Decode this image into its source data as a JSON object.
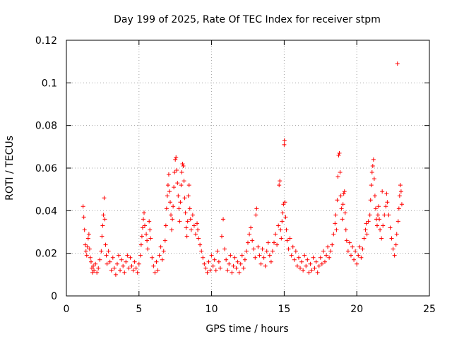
{
  "chart_data": {
    "type": "scatter",
    "title": "Day 199 of 2025, Rate Of TEC Index for receiver stpm",
    "xlabel": "GPS time / hours",
    "ylabel": "ROTI / TECUs",
    "xlim": [
      0,
      25
    ],
    "ylim": [
      0,
      0.12
    ],
    "x_ticks": [
      0,
      5,
      10,
      15,
      20,
      25
    ],
    "x_tick_labels": [
      "0",
      "5",
      "10",
      "15",
      "20",
      "25"
    ],
    "y_ticks": [
      0,
      0.02,
      0.04,
      0.06,
      0.08,
      0.1,
      0.12
    ],
    "y_tick_labels": [
      "0",
      "0.02",
      "0.04",
      "0.06",
      "0.08",
      "0.1",
      "0.12"
    ],
    "grid": true,
    "marker": "+",
    "series_color": "#ff0000",
    "series": [
      {
        "name": "ROTI",
        "points": [
          [
            1.15,
            0.042
          ],
          [
            1.2,
            0.037
          ],
          [
            1.25,
            0.031
          ],
          [
            1.3,
            0.024
          ],
          [
            1.35,
            0.021
          ],
          [
            1.4,
            0.019
          ],
          [
            1.45,
            0.023
          ],
          [
            1.5,
            0.027
          ],
          [
            1.55,
            0.029
          ],
          [
            1.6,
            0.022
          ],
          [
            1.65,
            0.018
          ],
          [
            1.7,
            0.016
          ],
          [
            1.75,
            0.013
          ],
          [
            1.8,
            0.011
          ],
          [
            1.85,
            0.014
          ],
          [
            1.9,
            0.012
          ],
          [
            2.0,
            0.015
          ],
          [
            2.1,
            0.011
          ],
          [
            2.2,
            0.013
          ],
          [
            2.3,
            0.017
          ],
          [
            2.4,
            0.021
          ],
          [
            2.45,
            0.028
          ],
          [
            2.5,
            0.033
          ],
          [
            2.55,
            0.038
          ],
          [
            2.6,
            0.046
          ],
          [
            2.65,
            0.036
          ],
          [
            2.7,
            0.024
          ],
          [
            2.75,
            0.019
          ],
          [
            2.8,
            0.015
          ],
          [
            2.9,
            0.021
          ],
          [
            3.0,
            0.016
          ],
          [
            3.1,
            0.012
          ],
          [
            3.2,
            0.018
          ],
          [
            3.3,
            0.013
          ],
          [
            3.4,
            0.01
          ],
          [
            3.5,
            0.015
          ],
          [
            3.6,
            0.019
          ],
          [
            3.7,
            0.012
          ],
          [
            3.8,
            0.017
          ],
          [
            3.9,
            0.014
          ],
          [
            4.0,
            0.011
          ],
          [
            4.1,
            0.016
          ],
          [
            4.2,
            0.019
          ],
          [
            4.3,
            0.013
          ],
          [
            4.4,
            0.018
          ],
          [
            4.5,
            0.014
          ],
          [
            4.6,
            0.012
          ],
          [
            4.7,
            0.016
          ],
          [
            4.8,
            0.013
          ],
          [
            4.9,
            0.011
          ],
          [
            5.0,
            0.015
          ],
          [
            5.1,
            0.019
          ],
          [
            5.15,
            0.024
          ],
          [
            5.2,
            0.028
          ],
          [
            5.25,
            0.032
          ],
          [
            5.3,
            0.036
          ],
          [
            5.35,
            0.039
          ],
          [
            5.4,
            0.033
          ],
          [
            5.5,
            0.029
          ],
          [
            5.55,
            0.026
          ],
          [
            5.6,
            0.022
          ],
          [
            5.7,
            0.035
          ],
          [
            5.75,
            0.031
          ],
          [
            5.8,
            0.027
          ],
          [
            5.9,
            0.018
          ],
          [
            6.0,
            0.014
          ],
          [
            6.1,
            0.011
          ],
          [
            6.2,
            0.016
          ],
          [
            6.3,
            0.012
          ],
          [
            6.4,
            0.019
          ],
          [
            6.5,
            0.023
          ],
          [
            6.6,
            0.017
          ],
          [
            6.7,
            0.021
          ],
          [
            6.8,
            0.026
          ],
          [
            6.85,
            0.033
          ],
          [
            6.9,
            0.041
          ],
          [
            6.95,
            0.047
          ],
          [
            7.0,
            0.052
          ],
          [
            7.05,
            0.057
          ],
          [
            7.1,
            0.049
          ],
          [
            7.15,
            0.044
          ],
          [
            7.2,
            0.038
          ],
          [
            7.25,
            0.031
          ],
          [
            7.3,
            0.036
          ],
          [
            7.35,
            0.042
          ],
          [
            7.4,
            0.051
          ],
          [
            7.45,
            0.058
          ],
          [
            7.5,
            0.064
          ],
          [
            7.55,
            0.065
          ],
          [
            7.6,
            0.059
          ],
          [
            7.65,
            0.053
          ],
          [
            7.7,
            0.047
          ],
          [
            7.75,
            0.041
          ],
          [
            7.8,
            0.035
          ],
          [
            7.85,
            0.044
          ],
          [
            7.9,
            0.052
          ],
          [
            7.95,
            0.058
          ],
          [
            8.0,
            0.062
          ],
          [
            8.05,
            0.061
          ],
          [
            8.1,
            0.054
          ],
          [
            8.15,
            0.046
          ],
          [
            8.2,
            0.039
          ],
          [
            8.25,
            0.032
          ],
          [
            8.3,
            0.028
          ],
          [
            8.35,
            0.035
          ],
          [
            8.4,
            0.047
          ],
          [
            8.45,
            0.052
          ],
          [
            8.5,
            0.041
          ],
          [
            8.55,
            0.036
          ],
          [
            8.6,
            0.031
          ],
          [
            8.7,
            0.038
          ],
          [
            8.8,
            0.033
          ],
          [
            8.9,
            0.029
          ],
          [
            9.0,
            0.034
          ],
          [
            9.05,
            0.031
          ],
          [
            9.1,
            0.027
          ],
          [
            9.2,
            0.024
          ],
          [
            9.3,
            0.021
          ],
          [
            9.4,
            0.018
          ],
          [
            9.5,
            0.015
          ],
          [
            9.6,
            0.013
          ],
          [
            9.7,
            0.011
          ],
          [
            9.8,
            0.016
          ],
          [
            9.9,
            0.012
          ],
          [
            10.0,
            0.019
          ],
          [
            10.1,
            0.014
          ],
          [
            10.2,
            0.017
          ],
          [
            10.3,
            0.012
          ],
          [
            10.4,
            0.021
          ],
          [
            10.5,
            0.016
          ],
          [
            10.6,
            0.013
          ],
          [
            10.7,
            0.028
          ],
          [
            10.8,
            0.036
          ],
          [
            10.9,
            0.022
          ],
          [
            11.0,
            0.017
          ],
          [
            11.1,
            0.012
          ],
          [
            11.2,
            0.015
          ],
          [
            11.3,
            0.019
          ],
          [
            11.4,
            0.011
          ],
          [
            11.5,
            0.014
          ],
          [
            11.6,
            0.018
          ],
          [
            11.7,
            0.013
          ],
          [
            11.8,
            0.016
          ],
          [
            11.9,
            0.011
          ],
          [
            12.0,
            0.015
          ],
          [
            12.1,
            0.019
          ],
          [
            12.2,
            0.013
          ],
          [
            12.3,
            0.017
          ],
          [
            12.4,
            0.021
          ],
          [
            12.5,
            0.025
          ],
          [
            12.6,
            0.029
          ],
          [
            12.7,
            0.032
          ],
          [
            12.8,
            0.026
          ],
          [
            12.9,
            0.022
          ],
          [
            13.0,
            0.018
          ],
          [
            13.05,
            0.038
          ],
          [
            13.1,
            0.041
          ],
          [
            13.2,
            0.023
          ],
          [
            13.3,
            0.019
          ],
          [
            13.4,
            0.015
          ],
          [
            13.5,
            0.022
          ],
          [
            13.6,
            0.018
          ],
          [
            13.7,
            0.014
          ],
          [
            13.8,
            0.021
          ],
          [
            13.9,
            0.025
          ],
          [
            14.0,
            0.019
          ],
          [
            14.1,
            0.016
          ],
          [
            14.2,
            0.021
          ],
          [
            14.3,
            0.025
          ],
          [
            14.4,
            0.029
          ],
          [
            14.5,
            0.024
          ],
          [
            14.6,
            0.033
          ],
          [
            14.65,
            0.052
          ],
          [
            14.7,
            0.054
          ],
          [
            14.75,
            0.031
          ],
          [
            14.8,
            0.027
          ],
          [
            14.85,
            0.035
          ],
          [
            14.9,
            0.039
          ],
          [
            14.95,
            0.043
          ],
          [
            15.0,
            0.071
          ],
          [
            15.02,
            0.073
          ],
          [
            15.05,
            0.044
          ],
          [
            15.1,
            0.037
          ],
          [
            15.15,
            0.031
          ],
          [
            15.2,
            0.026
          ],
          [
            15.3,
            0.022
          ],
          [
            15.4,
            0.027
          ],
          [
            15.5,
            0.019
          ],
          [
            15.6,
            0.023
          ],
          [
            15.7,
            0.017
          ],
          [
            15.8,
            0.021
          ],
          [
            15.9,
            0.014
          ],
          [
            16.0,
            0.018
          ],
          [
            16.1,
            0.013
          ],
          [
            16.2,
            0.016
          ],
          [
            16.3,
            0.012
          ],
          [
            16.4,
            0.019
          ],
          [
            16.5,
            0.014
          ],
          [
            16.6,
            0.017
          ],
          [
            16.7,
            0.011
          ],
          [
            16.8,
            0.015
          ],
          [
            16.9,
            0.012
          ],
          [
            17.0,
            0.018
          ],
          [
            17.1,
            0.013
          ],
          [
            17.2,
            0.016
          ],
          [
            17.3,
            0.011
          ],
          [
            17.4,
            0.014
          ],
          [
            17.5,
            0.018
          ],
          [
            17.6,
            0.015
          ],
          [
            17.7,
            0.021
          ],
          [
            17.8,
            0.016
          ],
          [
            17.9,
            0.019
          ],
          [
            18.0,
            0.023
          ],
          [
            18.1,
            0.018
          ],
          [
            18.2,
            0.021
          ],
          [
            18.3,
            0.024
          ],
          [
            18.4,
            0.029
          ],
          [
            18.5,
            0.034
          ],
          [
            18.55,
            0.038
          ],
          [
            18.6,
            0.031
          ],
          [
            18.65,
            0.045
          ],
          [
            18.7,
            0.056
          ],
          [
            18.75,
            0.066
          ],
          [
            18.8,
            0.067
          ],
          [
            18.85,
            0.058
          ],
          [
            18.9,
            0.047
          ],
          [
            18.95,
            0.041
          ],
          [
            19.0,
            0.036
          ],
          [
            19.05,
            0.043
          ],
          [
            19.1,
            0.048
          ],
          [
            19.15,
            0.049
          ],
          [
            19.2,
            0.039
          ],
          [
            19.25,
            0.031
          ],
          [
            19.3,
            0.026
          ],
          [
            19.4,
            0.021
          ],
          [
            19.5,
            0.025
          ],
          [
            19.6,
            0.019
          ],
          [
            19.7,
            0.023
          ],
          [
            19.8,
            0.017
          ],
          [
            19.9,
            0.021
          ],
          [
            20.0,
            0.015
          ],
          [
            20.1,
            0.019
          ],
          [
            20.2,
            0.023
          ],
          [
            20.3,
            0.018
          ],
          [
            20.4,
            0.022
          ],
          [
            20.5,
            0.027
          ],
          [
            20.6,
            0.031
          ],
          [
            20.65,
            0.034
          ],
          [
            20.7,
            0.029
          ],
          [
            20.8,
            0.035
          ],
          [
            20.9,
            0.038
          ],
          [
            20.95,
            0.045
          ],
          [
            21.0,
            0.052
          ],
          [
            21.05,
            0.058
          ],
          [
            21.1,
            0.061
          ],
          [
            21.15,
            0.064
          ],
          [
            21.2,
            0.055
          ],
          [
            21.25,
            0.047
          ],
          [
            21.3,
            0.041
          ],
          [
            21.35,
            0.036
          ],
          [
            21.4,
            0.033
          ],
          [
            21.45,
            0.038
          ],
          [
            21.5,
            0.042
          ],
          [
            21.55,
            0.036
          ],
          [
            21.6,
            0.031
          ],
          [
            21.7,
            0.027
          ],
          [
            21.75,
            0.049
          ],
          [
            21.8,
            0.033
          ],
          [
            21.9,
            0.038
          ],
          [
            22.0,
            0.042
          ],
          [
            22.05,
            0.048
          ],
          [
            22.1,
            0.044
          ],
          [
            22.2,
            0.038
          ],
          [
            22.3,
            0.032
          ],
          [
            22.4,
            0.027
          ],
          [
            22.5,
            0.022
          ],
          [
            22.6,
            0.019
          ],
          [
            22.7,
            0.024
          ],
          [
            22.75,
            0.029
          ],
          [
            22.8,
            0.109
          ],
          [
            22.85,
            0.035
          ],
          [
            22.9,
            0.041
          ],
          [
            22.95,
            0.047
          ],
          [
            23.0,
            0.052
          ],
          [
            23.05,
            0.049
          ],
          [
            23.1,
            0.043
          ]
        ]
      }
    ]
  }
}
